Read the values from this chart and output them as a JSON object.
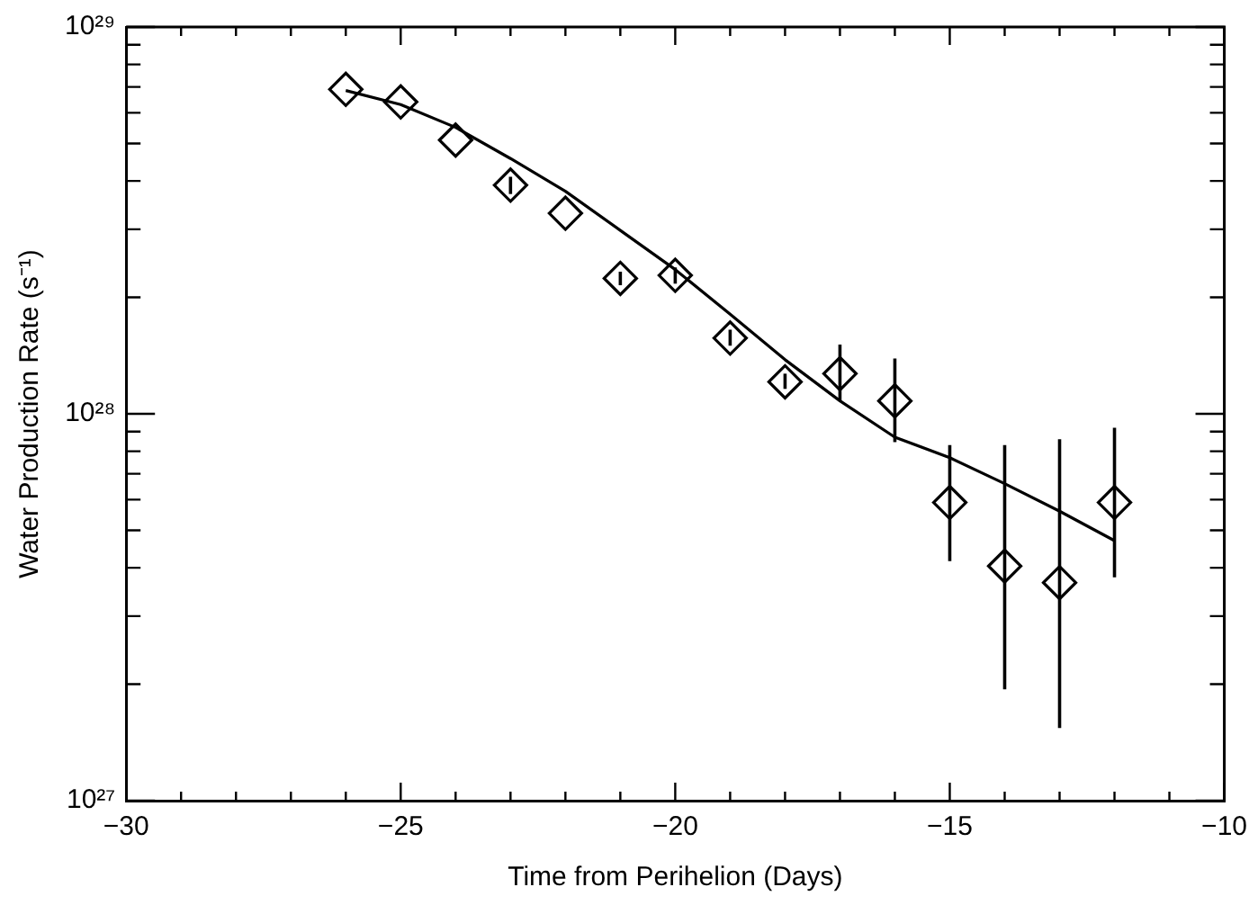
{
  "chart_data": {
    "type": "scatter",
    "xlabel": "Time from Perihelion (Days)",
    "ylabel": "Water Production Rate (s⁻¹)",
    "xlim": [
      -30,
      -10
    ],
    "xticks": [
      {
        "value": -30,
        "label": "−30"
      },
      {
        "value": -29,
        "label": null
      },
      {
        "value": -28,
        "label": null
      },
      {
        "value": -27,
        "label": null
      },
      {
        "value": -26,
        "label": null
      },
      {
        "value": -25,
        "label": "−25"
      },
      {
        "value": -24,
        "label": null
      },
      {
        "value": -23,
        "label": null
      },
      {
        "value": -22,
        "label": null
      },
      {
        "value": -21,
        "label": null
      },
      {
        "value": -20,
        "label": "−20"
      },
      {
        "value": -19,
        "label": null
      },
      {
        "value": -18,
        "label": null
      },
      {
        "value": -17,
        "label": null
      },
      {
        "value": -16,
        "label": null
      },
      {
        "value": -15,
        "label": "−15"
      },
      {
        "value": -14,
        "label": null
      },
      {
        "value": -13,
        "label": null
      },
      {
        "value": -12,
        "label": null
      },
      {
        "value": -11,
        "label": null
      },
      {
        "value": -10,
        "label": "−10"
      }
    ],
    "ylim": [
      1e+27,
      1e+29
    ],
    "yticks": [
      {
        "value": 1e+27,
        "label": "10²⁷"
      },
      {
        "value": 2e+27,
        "label": null
      },
      {
        "value": 3e+27,
        "label": null
      },
      {
        "value": 4e+27,
        "label": null
      },
      {
        "value": 5e+27,
        "label": null
      },
      {
        "value": 6e+27,
        "label": null
      },
      {
        "value": 7e+27,
        "label": null
      },
      {
        "value": 8e+27,
        "label": null
      },
      {
        "value": 9e+27,
        "label": null
      },
      {
        "value": 1e+28,
        "label": "10²⁸"
      },
      {
        "value": 2e+28,
        "label": null
      },
      {
        "value": 3e+28,
        "label": null
      },
      {
        "value": 4e+28,
        "label": null
      },
      {
        "value": 5e+28,
        "label": null
      },
      {
        "value": 6e+28,
        "label": null
      },
      {
        "value": 7e+28,
        "label": null
      },
      {
        "value": 8e+28,
        "label": null
      },
      {
        "value": 9e+28,
        "label": null
      },
      {
        "value": 1e+29,
        "label": "10²⁹"
      }
    ],
    "log": "y",
    "grid": false,
    "legend": false,
    "series": [
      {
        "type": "scatter",
        "marker": "diamond",
        "color": "#000000",
        "x": [
          -26,
          -25,
          -24,
          -23,
          -22,
          -21,
          -20,
          -19,
          -18,
          -17,
          -16,
          -15,
          -14,
          -13,
          -12
        ],
        "values": [
          6.9e+28,
          6.4e+28,
          5.1e+28,
          3.9e+28,
          3.3e+28,
          2.24e+28,
          2.28e+28,
          1.57e+28,
          1.21e+28,
          1.27e+28,
          1.08e+28,
          5.9e+27,
          4.04e+27,
          3.66e+27,
          5.9e+27
        ],
        "errors": [
          null,
          null,
          null,
          [
            3.7e+28,
            4.1e+28
          ],
          null,
          [
            2.15e+28,
            2.33e+28
          ],
          [
            2.17e+28,
            2.39e+28
          ],
          [
            1.5e+28,
            1.65e+28
          ],
          [
            1.16e+28,
            1.27e+28
          ],
          [
            1.08e+28,
            1.51e+28
          ],
          [
            8.45e+27,
            1.39e+28
          ],
          [
            4.16e+27,
            8.3e+27
          ],
          [
            1.94e+27,
            8.3e+27
          ],
          [
            1.54e+27,
            8.6e+27
          ],
          [
            3.78e+27,
            9.2e+27
          ]
        ]
      },
      {
        "type": "line",
        "marker": "none",
        "color": "#000000",
        "x": [
          -26,
          -25,
          -24,
          -23,
          -22,
          -21,
          -20,
          -19,
          -18,
          -17,
          -16,
          -15,
          -14,
          -13,
          -12
        ],
        "values": [
          6.85e+28,
          6.3e+28,
          5.5e+28,
          4.57e+28,
          3.76e+28,
          2.98e+28,
          2.36e+28,
          1.81e+28,
          1.38e+28,
          1.08e+28,
          8.7e+27,
          7.7e+27,
          6.6e+27,
          5.6e+27,
          4.7e+27
        ]
      }
    ]
  }
}
